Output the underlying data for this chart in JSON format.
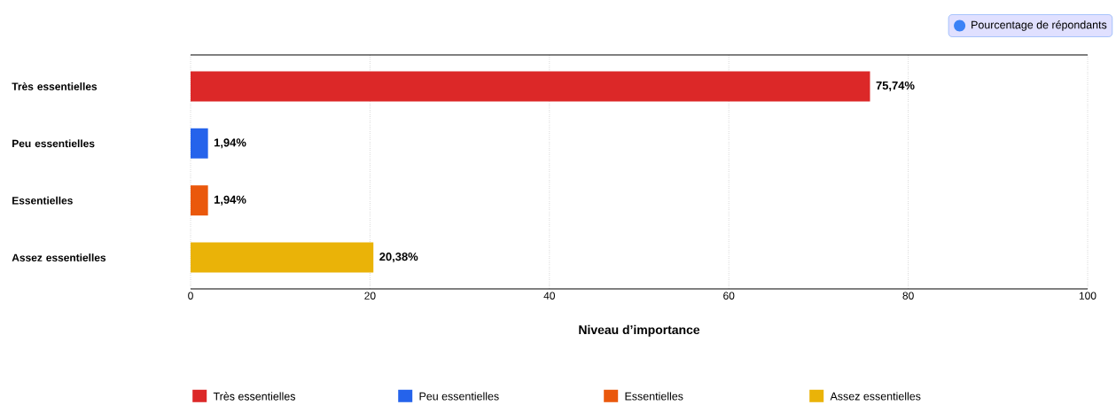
{
  "chart_data": {
    "type": "bar",
    "orientation": "horizontal",
    "xlabel": "Niveau d’importance",
    "categories": [
      "Très essentielles",
      "Peu essentielles",
      "Essentielles",
      "Assez essentielles"
    ],
    "series": [
      {
        "name": "Pourcentage de répondants",
        "color": "#3b82f6",
        "values": [
          75.74,
          1.94,
          1.94,
          20.38
        ],
        "colors": [
          "#dc2828",
          "#2563eb",
          "#ea580c",
          "#eab308"
        ],
        "value_labels": [
          "75,74%",
          "1,94%",
          "1,94%",
          "20,38%"
        ]
      }
    ],
    "xlim": [
      0,
      100
    ],
    "xticks": [
      0,
      20,
      40,
      60,
      80,
      100
    ],
    "grid": "x",
    "legend": "top right"
  }
}
